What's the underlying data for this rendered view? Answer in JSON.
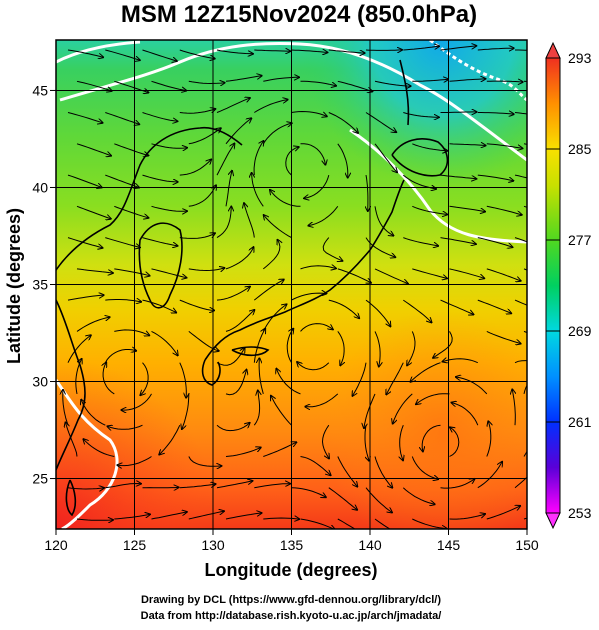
{
  "title": "MSM 12Z15Nov2024 (850.0hPa)",
  "xlabel": "Longitude (degrees)",
  "ylabel": "Latitude  (degrees)",
  "x_ticks": [
    120,
    125,
    130,
    135,
    140,
    145,
    150
  ],
  "y_ticks": [
    25,
    30,
    35,
    40,
    45
  ],
  "xlim": [
    120,
    150
  ],
  "ylim": [
    22.4,
    47.6
  ],
  "colorbar": {
    "min": 253,
    "max": 293,
    "ticks": [
      253,
      261,
      269,
      277,
      285,
      293
    ],
    "colors": [
      "#ff00ff",
      "#5a00d8",
      "#0030ff",
      "#00a8ff",
      "#00e0d0",
      "#10d040",
      "#70e000",
      "#e8e800",
      "#ffa000",
      "#ff5010",
      "#ee2020"
    ]
  },
  "credits": {
    "line1": "Drawing by DCL (https://www.gfd-dennou.org/library/dcl/)",
    "line2": "Data from http://database.rish.kyoto-u.ac.jp/arch/jmadata/"
  }
}
